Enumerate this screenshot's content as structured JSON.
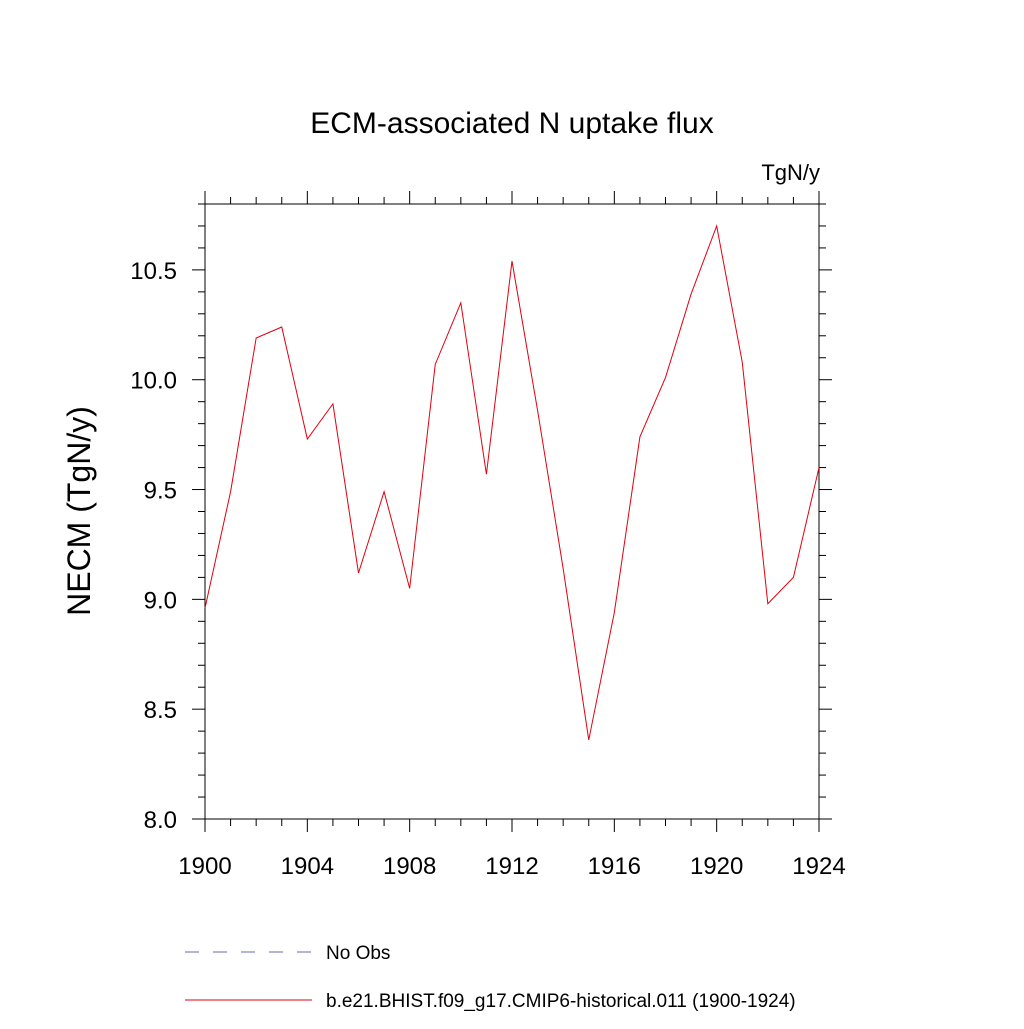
{
  "chart_data": {
    "type": "line",
    "title": "ECM-associated N uptake flux",
    "units_label": "TgN/y",
    "xlabel": "",
    "ylabel": "NECM  (TgN/y)",
    "xlim": [
      1900,
      1924
    ],
    "ylim": [
      8.0,
      10.8
    ],
    "x_ticks": [
      1900,
      1904,
      1908,
      1912,
      1916,
      1920,
      1924
    ],
    "x_tick_labels": [
      "1900",
      "1904",
      "1908",
      "1912",
      "1916",
      "1920",
      "1924"
    ],
    "y_ticks": [
      8.0,
      8.5,
      9.0,
      9.5,
      10.0,
      10.5
    ],
    "y_tick_labels": [
      "8.0",
      "8.5",
      "9.0",
      "9.5",
      "10.0",
      "10.5"
    ],
    "legend_position": "bottom",
    "grid": false,
    "series": [
      {
        "name": "No Obs",
        "style": "dashed",
        "color": "#6a6aa8",
        "x": [],
        "values": []
      },
      {
        "name": "b.e21.BHIST.f09_g17.CMIP6-historical.011 (1900-1924)",
        "style": "solid",
        "color": "#e0000f",
        "x": [
          1900,
          1901,
          1902,
          1903,
          1904,
          1905,
          1906,
          1907,
          1908,
          1909,
          1910,
          1911,
          1912,
          1913,
          1914,
          1915,
          1916,
          1917,
          1918,
          1919,
          1920,
          1921,
          1922,
          1923,
          1924
        ],
        "values": [
          8.96,
          9.49,
          10.19,
          10.24,
          9.73,
          9.89,
          9.12,
          9.49,
          9.05,
          10.07,
          10.35,
          9.57,
          10.54,
          9.86,
          9.14,
          8.36,
          8.94,
          9.74,
          10.01,
          10.39,
          10.7,
          10.08,
          8.98,
          9.1,
          9.6
        ]
      }
    ]
  }
}
